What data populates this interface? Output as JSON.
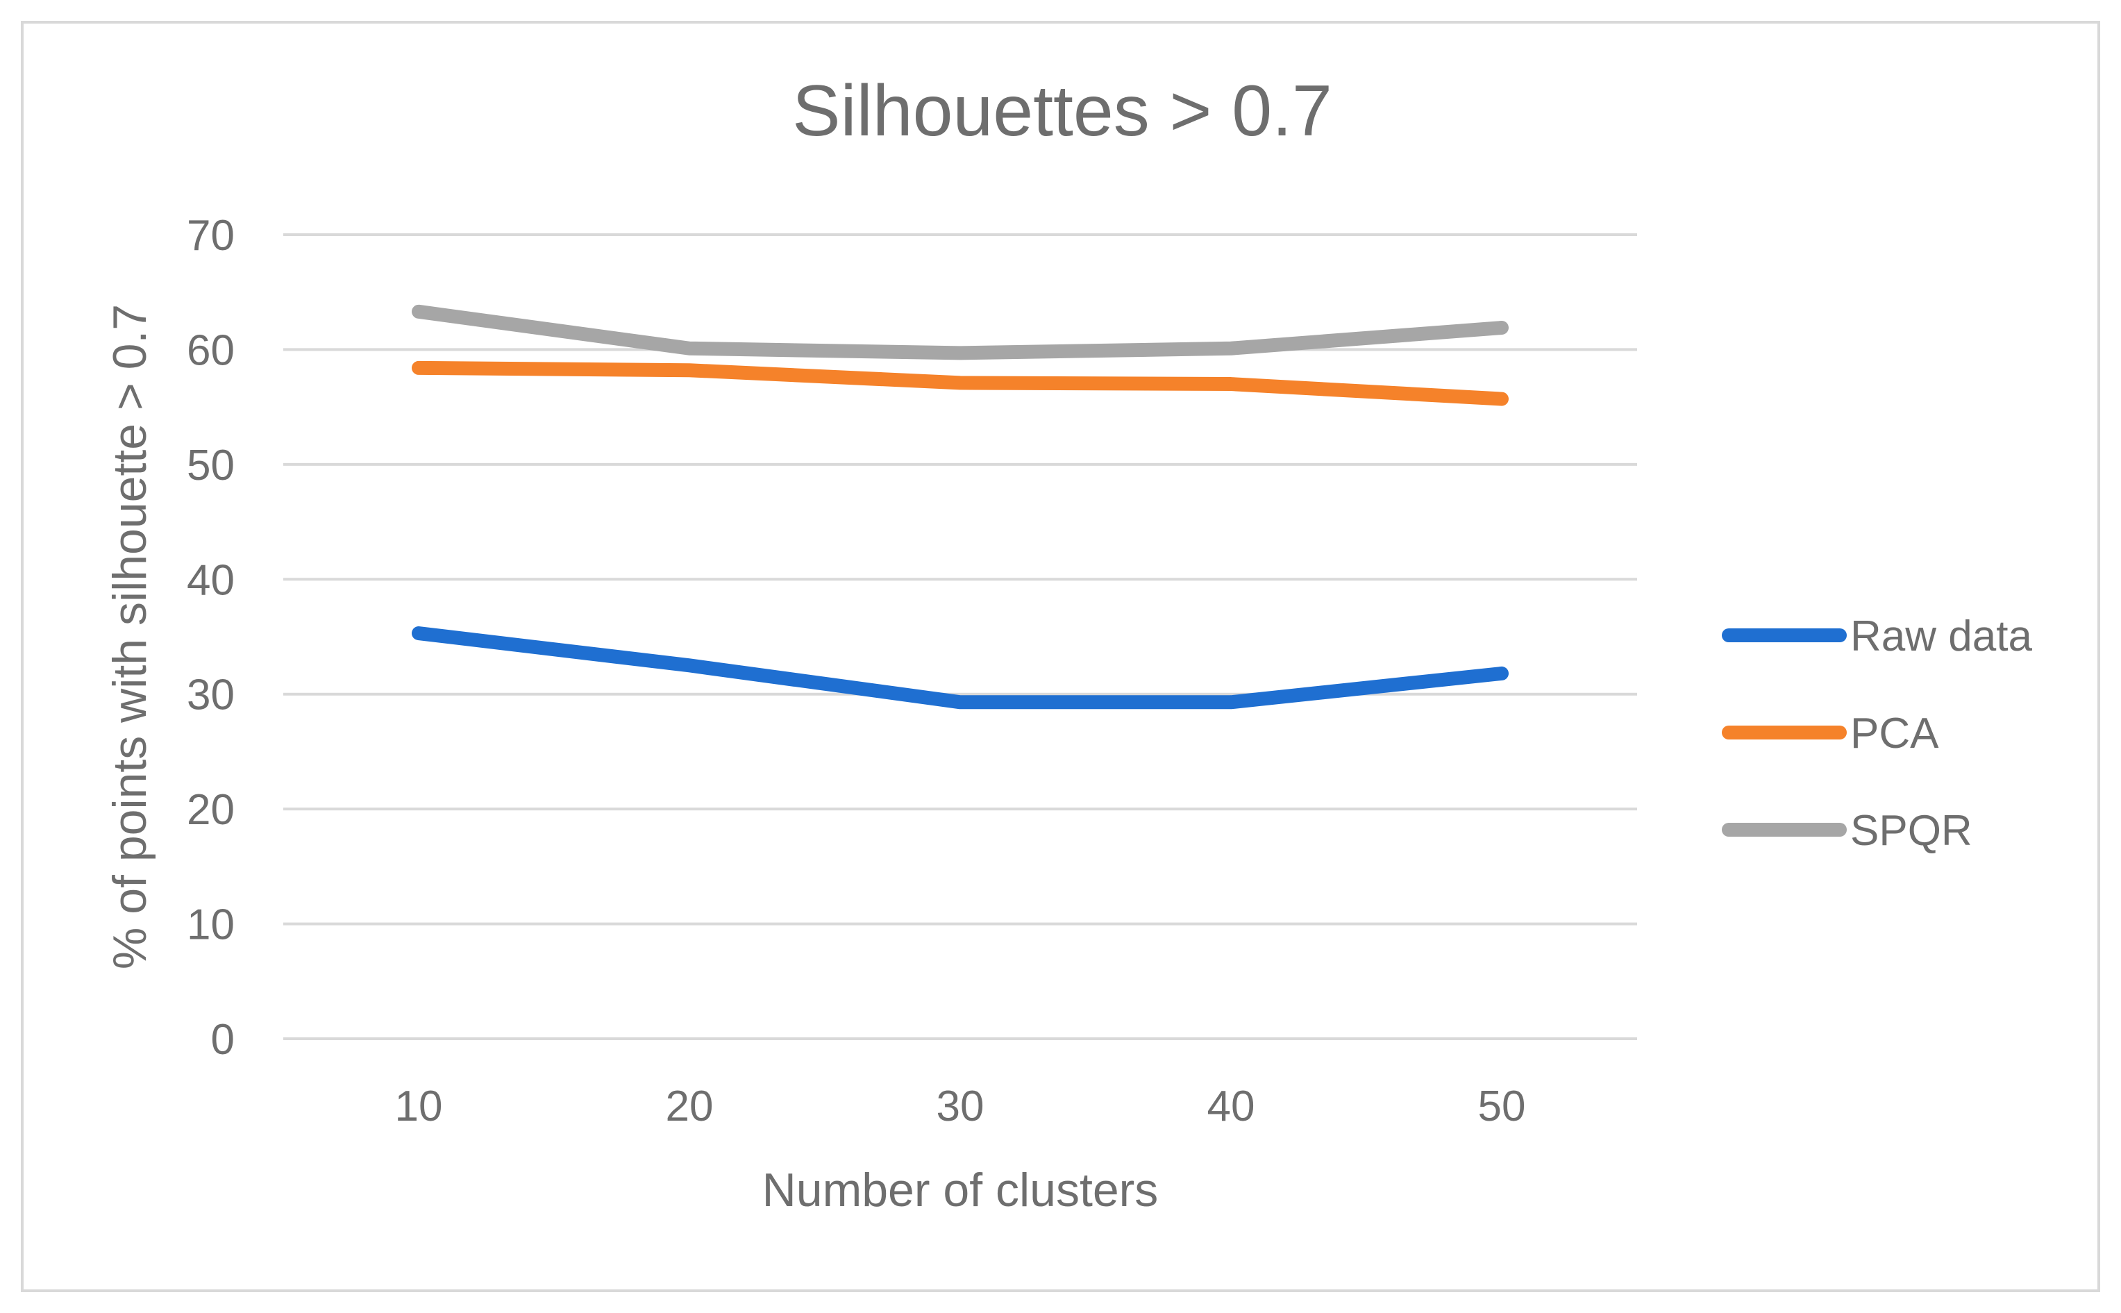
{
  "chart_data": {
    "type": "line",
    "title": "Silhouettes > 0.7",
    "xlabel": "Number of clusters",
    "ylabel": "% of points with silhouette > 0.7",
    "categories": [
      "10",
      "20",
      "30",
      "40",
      "50"
    ],
    "ylim": [
      0,
      70
    ],
    "yticks": [
      0,
      10,
      20,
      30,
      40,
      50,
      60,
      70
    ],
    "grid": true,
    "legend_position": "right",
    "series": [
      {
        "name": "Raw data",
        "color": "#1f6fd1",
        "values": [
          35.3,
          32.5,
          29.3,
          29.3,
          31.8
        ]
      },
      {
        "name": "PCA",
        "color": "#f5822a",
        "values": [
          58.4,
          58.2,
          57.1,
          57.0,
          55.7
        ]
      },
      {
        "name": "SPQR",
        "color": "#a6a6a6",
        "values": [
          63.3,
          60.1,
          59.7,
          60.1,
          61.9
        ]
      }
    ]
  }
}
